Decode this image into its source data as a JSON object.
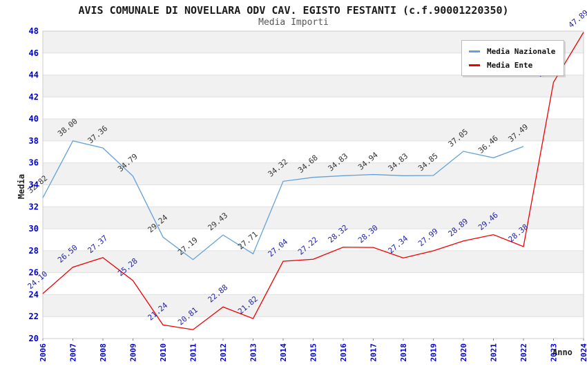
{
  "header": {
    "title": "AVIS COMUNALE DI NOVELLARA ODV CAV. EGISTO FESTANTI (c.f.90001220350)",
    "subtitle": "Media Importi"
  },
  "chart_data": {
    "type": "line",
    "title": "AVIS COMUNALE DI NOVELLARA ODV CAV. EGISTO FESTANTI (c.f.90001220350)",
    "subtitle": "Media Importi",
    "xlabel": "Anno",
    "ylabel": "Media",
    "x": [
      2006,
      2007,
      2008,
      2009,
      2010,
      2011,
      2012,
      2013,
      2014,
      2015,
      2016,
      2017,
      2018,
      2019,
      2020,
      2021,
      2022,
      2023,
      2024
    ],
    "series": [
      {
        "name": "Media Nazionale",
        "color": "#64a0d8",
        "label_color": "#333333",
        "values": [
          32.82,
          38.0,
          37.36,
          34.79,
          29.24,
          27.19,
          29.43,
          27.71,
          34.32,
          34.68,
          34.83,
          34.94,
          34.83,
          34.85,
          37.05,
          36.46,
          37.49,
          null,
          null
        ]
      },
      {
        "name": "Media Ente",
        "color": "#ee0000",
        "label_color": "#1f1fa8",
        "values": [
          24.1,
          26.5,
          27.37,
          25.28,
          21.24,
          20.81,
          22.88,
          21.82,
          27.04,
          27.22,
          28.32,
          28.3,
          27.34,
          27.99,
          28.89,
          29.46,
          28.38,
          43.34,
          47.89
        ]
      }
    ],
    "ylim": [
      20,
      48
    ],
    "ytick_step": 2,
    "grid": "horizontal-bands-alternating",
    "legend_position": "top-right",
    "value_label_decimals": 2,
    "colors": {
      "band_fill": "#f1f1f1",
      "gridline": "#e0e0e0",
      "plot_border": "#cccccc",
      "axis_tick_label": "#0000cc"
    }
  }
}
